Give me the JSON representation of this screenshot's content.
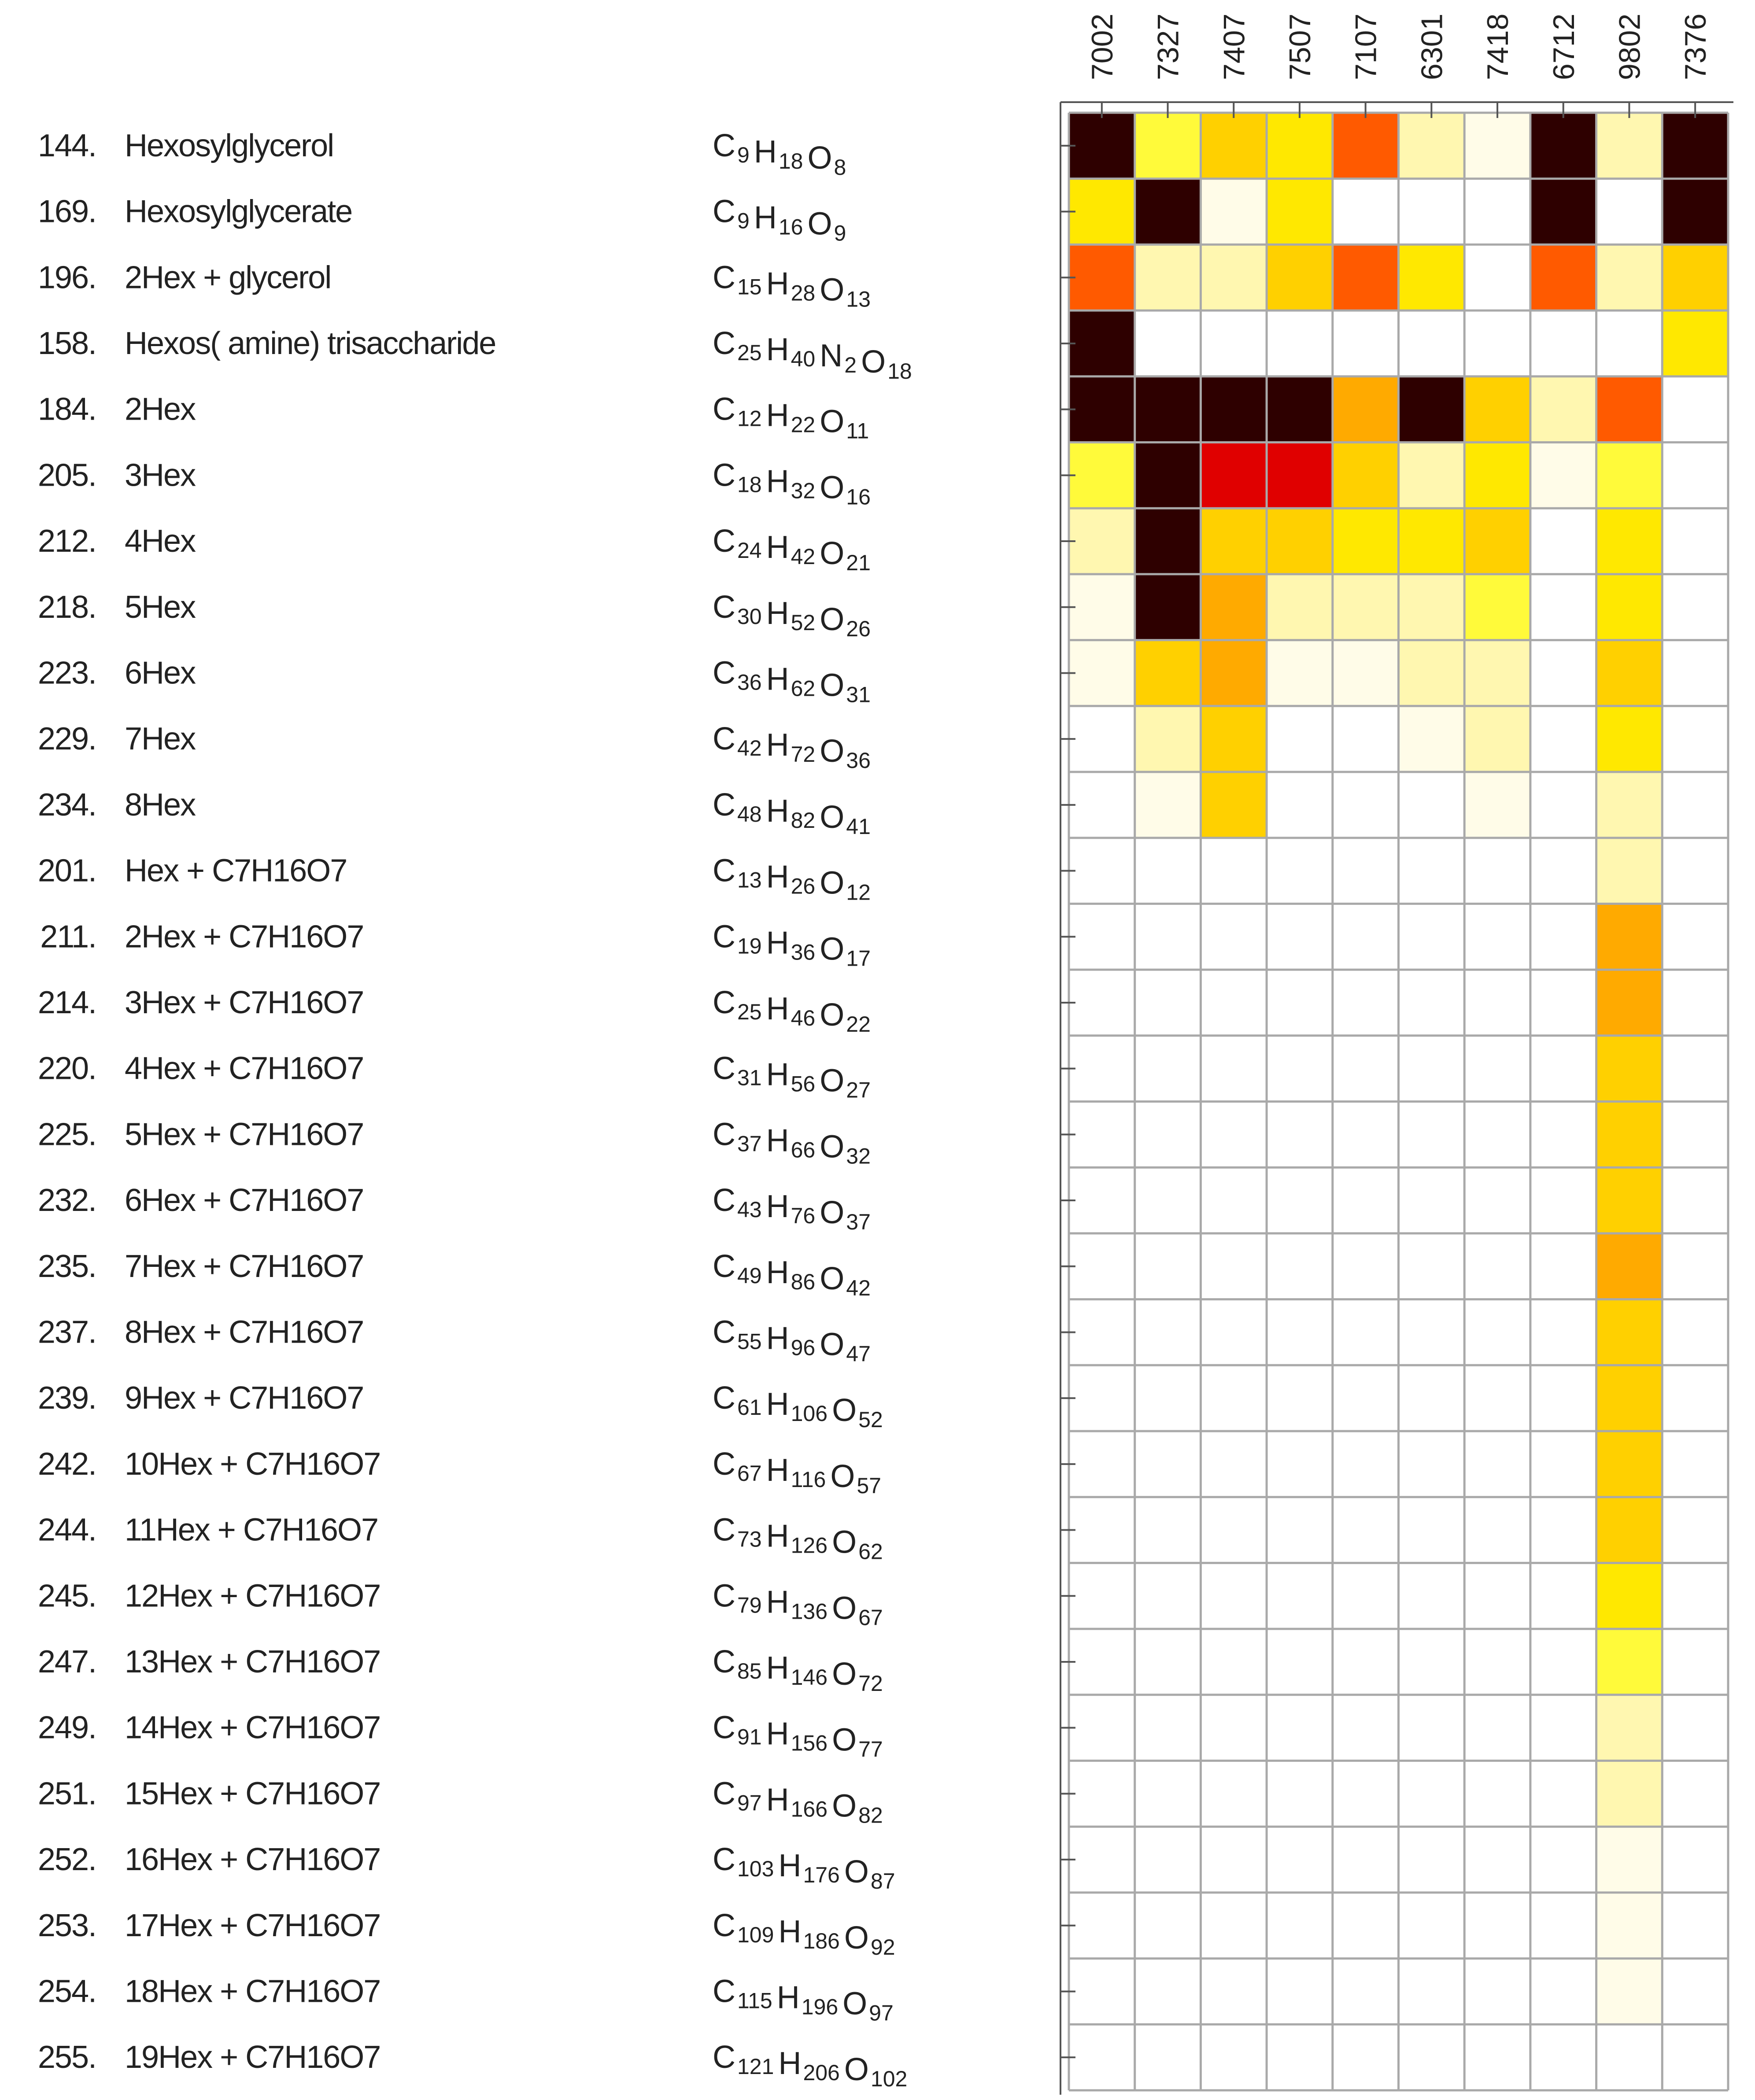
{
  "chart_data": {
    "type": "heatmap",
    "columns": [
      "7002",
      "7327",
      "7407",
      "7507",
      "7107",
      "6301",
      "7418",
      "6712",
      "9802",
      "7376"
    ],
    "rows": [
      {
        "num": "144.",
        "name": "Hexosylglycerol",
        "formula": [
          [
            "C",
            "9"
          ],
          [
            "H",
            "18"
          ],
          [
            "O",
            "8"
          ]
        ]
      },
      {
        "num": "169.",
        "name": "Hexosylglycerate",
        "formula": [
          [
            "C",
            "9"
          ],
          [
            "H",
            "16"
          ],
          [
            "O",
            "9"
          ]
        ]
      },
      {
        "num": "196.",
        "name": "2Hex + glycerol",
        "formula": [
          [
            "C",
            "15"
          ],
          [
            "H",
            "28"
          ],
          [
            "O",
            "13"
          ]
        ]
      },
      {
        "num": "158.",
        "name": "Hexos( amine) trisaccharide",
        "formula": [
          [
            "C",
            "25"
          ],
          [
            "H",
            "40"
          ],
          [
            "N",
            "2"
          ],
          [
            "O",
            "18"
          ]
        ]
      },
      {
        "num": "184.",
        "name": "2Hex",
        "formula": [
          [
            "C",
            "12"
          ],
          [
            "H",
            "22"
          ],
          [
            "O",
            "11"
          ]
        ]
      },
      {
        "num": "205.",
        "name": "3Hex",
        "formula": [
          [
            "C",
            "18"
          ],
          [
            "H",
            "32"
          ],
          [
            "O",
            "16"
          ]
        ]
      },
      {
        "num": "212.",
        "name": "4Hex",
        "formula": [
          [
            "C",
            "24"
          ],
          [
            "H",
            "42"
          ],
          [
            "O",
            "21"
          ]
        ]
      },
      {
        "num": "218.",
        "name": "5Hex",
        "formula": [
          [
            "C",
            "30"
          ],
          [
            "H",
            "52"
          ],
          [
            "O",
            "26"
          ]
        ]
      },
      {
        "num": "223.",
        "name": "6Hex",
        "formula": [
          [
            "C",
            "36"
          ],
          [
            "H",
            "62"
          ],
          [
            "O",
            "31"
          ]
        ]
      },
      {
        "num": "229.",
        "name": "7Hex",
        "formula": [
          [
            "C",
            "42"
          ],
          [
            "H",
            "72"
          ],
          [
            "O",
            "36"
          ]
        ]
      },
      {
        "num": "234.",
        "name": "8Hex",
        "formula": [
          [
            "C",
            "48"
          ],
          [
            "H",
            "82"
          ],
          [
            "O",
            "41"
          ]
        ]
      },
      {
        "num": "201.",
        "name": "Hex + C7H16O7",
        "formula": [
          [
            "C",
            "13"
          ],
          [
            "H",
            "26"
          ],
          [
            "O",
            "12"
          ]
        ]
      },
      {
        "num": "211.",
        "name": "2Hex + C7H16O7",
        "formula": [
          [
            "C",
            "19"
          ],
          [
            "H",
            "36"
          ],
          [
            "O",
            "17"
          ]
        ]
      },
      {
        "num": "214.",
        "name": "3Hex + C7H16O7",
        "formula": [
          [
            "C",
            "25"
          ],
          [
            "H",
            "46"
          ],
          [
            "O",
            "22"
          ]
        ]
      },
      {
        "num": "220.",
        "name": "4Hex + C7H16O7",
        "formula": [
          [
            "C",
            "31"
          ],
          [
            "H",
            "56"
          ],
          [
            "O",
            "27"
          ]
        ]
      },
      {
        "num": "225.",
        "name": "5Hex + C7H16O7",
        "formula": [
          [
            "C",
            "37"
          ],
          [
            "H",
            "66"
          ],
          [
            "O",
            "32"
          ]
        ]
      },
      {
        "num": "232.",
        "name": "6Hex + C7H16O7",
        "formula": [
          [
            "C",
            "43"
          ],
          [
            "H",
            "76"
          ],
          [
            "O",
            "37"
          ]
        ]
      },
      {
        "num": "235.",
        "name": "7Hex + C7H16O7",
        "formula": [
          [
            "C",
            "49"
          ],
          [
            "H",
            "86"
          ],
          [
            "O",
            "42"
          ]
        ]
      },
      {
        "num": "237.",
        "name": "8Hex + C7H16O7",
        "formula": [
          [
            "C",
            "55"
          ],
          [
            "H",
            "96"
          ],
          [
            "O",
            "47"
          ]
        ]
      },
      {
        "num": "239.",
        "name": "9Hex + C7H16O7",
        "formula": [
          [
            "C",
            "61"
          ],
          [
            "H",
            "106"
          ],
          [
            "O",
            "52"
          ]
        ]
      },
      {
        "num": "242.",
        "name": "10Hex + C7H16O7",
        "formula": [
          [
            "C",
            "67"
          ],
          [
            "H",
            "116"
          ],
          [
            "O",
            "57"
          ]
        ]
      },
      {
        "num": "244.",
        "name": "11Hex + C7H16O7",
        "formula": [
          [
            "C",
            "73"
          ],
          [
            "H",
            "126"
          ],
          [
            "O",
            "62"
          ]
        ]
      },
      {
        "num": "245.",
        "name": "12Hex + C7H16O7",
        "formula": [
          [
            "C",
            "79"
          ],
          [
            "H",
            "136"
          ],
          [
            "O",
            "67"
          ]
        ]
      },
      {
        "num": "247.",
        "name": "13Hex + C7H16O7",
        "formula": [
          [
            "C",
            "85"
          ],
          [
            "H",
            "146"
          ],
          [
            "O",
            "72"
          ]
        ]
      },
      {
        "num": "249.",
        "name": "14Hex + C7H16O7",
        "formula": [
          [
            "C",
            "91"
          ],
          [
            "H",
            "156"
          ],
          [
            "O",
            "77"
          ]
        ]
      },
      {
        "num": "251.",
        "name": "15Hex + C7H16O7",
        "formula": [
          [
            "C",
            "97"
          ],
          [
            "H",
            "166"
          ],
          [
            "O",
            "82"
          ]
        ]
      },
      {
        "num": "252.",
        "name": "16Hex + C7H16O7",
        "formula": [
          [
            "C",
            "103"
          ],
          [
            "H",
            "176"
          ],
          [
            "O",
            "87"
          ]
        ]
      },
      {
        "num": "253.",
        "name": "17Hex + C7H16O7",
        "formula": [
          [
            "C",
            "109"
          ],
          [
            "H",
            "186"
          ],
          [
            "O",
            "92"
          ]
        ]
      },
      {
        "num": "254.",
        "name": "18Hex + C7H16O7",
        "formula": [
          [
            "C",
            "115"
          ],
          [
            "H",
            "196"
          ],
          [
            "O",
            "97"
          ]
        ]
      },
      {
        "num": "255.",
        "name": "19Hex + C7H16O7",
        "formula": [
          [
            "C",
            "121"
          ],
          [
            "H",
            "206"
          ],
          [
            "O",
            "102"
          ]
        ]
      }
    ],
    "values": [
      [
        9,
        3,
        5,
        4,
        7,
        2,
        1,
        9,
        2,
        9
      ],
      [
        4,
        9,
        1,
        4,
        0,
        0,
        0,
        9,
        0,
        9
      ],
      [
        7,
        2,
        2,
        5,
        7,
        4,
        0,
        7,
        2,
        5
      ],
      [
        9,
        0,
        0,
        0,
        0,
        0,
        0,
        0,
        0,
        4
      ],
      [
        9,
        9,
        9,
        9,
        6,
        9,
        5,
        2,
        7,
        0
      ],
      [
        3,
        9,
        8,
        8,
        5,
        2,
        4,
        1,
        3,
        0
      ],
      [
        2,
        9,
        5,
        5,
        4,
        4,
        5,
        0,
        4,
        0
      ],
      [
        1,
        9,
        6,
        2,
        2,
        2,
        3,
        0,
        4,
        0
      ],
      [
        1,
        5,
        6,
        1,
        1,
        2,
        2,
        0,
        5,
        0
      ],
      [
        0,
        2,
        5,
        0,
        0,
        1,
        2,
        0,
        4,
        0
      ],
      [
        0,
        1,
        5,
        0,
        0,
        0,
        1,
        0,
        2,
        0
      ],
      [
        0,
        0,
        0,
        0,
        0,
        0,
        0,
        0,
        2,
        0
      ],
      [
        0,
        0,
        0,
        0,
        0,
        0,
        0,
        0,
        6,
        0
      ],
      [
        0,
        0,
        0,
        0,
        0,
        0,
        0,
        0,
        6,
        0
      ],
      [
        0,
        0,
        0,
        0,
        0,
        0,
        0,
        0,
        5,
        0
      ],
      [
        0,
        0,
        0,
        0,
        0,
        0,
        0,
        0,
        5,
        0
      ],
      [
        0,
        0,
        0,
        0,
        0,
        0,
        0,
        0,
        5,
        0
      ],
      [
        0,
        0,
        0,
        0,
        0,
        0,
        0,
        0,
        6,
        0
      ],
      [
        0,
        0,
        0,
        0,
        0,
        0,
        0,
        0,
        5,
        0
      ],
      [
        0,
        0,
        0,
        0,
        0,
        0,
        0,
        0,
        5,
        0
      ],
      [
        0,
        0,
        0,
        0,
        0,
        0,
        0,
        0,
        5,
        0
      ],
      [
        0,
        0,
        0,
        0,
        0,
        0,
        0,
        0,
        5,
        0
      ],
      [
        0,
        0,
        0,
        0,
        0,
        0,
        0,
        0,
        4,
        0
      ],
      [
        0,
        0,
        0,
        0,
        0,
        0,
        0,
        0,
        3,
        0
      ],
      [
        0,
        0,
        0,
        0,
        0,
        0,
        0,
        0,
        2,
        0
      ],
      [
        0,
        0,
        0,
        0,
        0,
        0,
        0,
        0,
        2,
        0
      ],
      [
        0,
        0,
        0,
        0,
        0,
        0,
        0,
        0,
        1,
        0
      ],
      [
        0,
        0,
        0,
        0,
        0,
        0,
        0,
        0,
        1,
        0
      ],
      [
        0,
        0,
        0,
        0,
        0,
        0,
        0,
        0,
        1,
        0
      ],
      [
        0,
        0,
        0,
        0,
        0,
        0,
        0,
        0,
        0,
        0
      ]
    ],
    "value_scale": [
      0,
      9
    ],
    "color_scale": [
      "#ffffff",
      "#fffce8",
      "#fff7b0",
      "#fffa3a",
      "#ffe800",
      "#ffd000",
      "#ffaa00",
      "#ff5a00",
      "#e00000",
      "#2e0000"
    ],
    "grid": true,
    "colors": {
      "grid": "#a9a9a9",
      "axis": "#555555",
      "text": "#222222"
    }
  }
}
